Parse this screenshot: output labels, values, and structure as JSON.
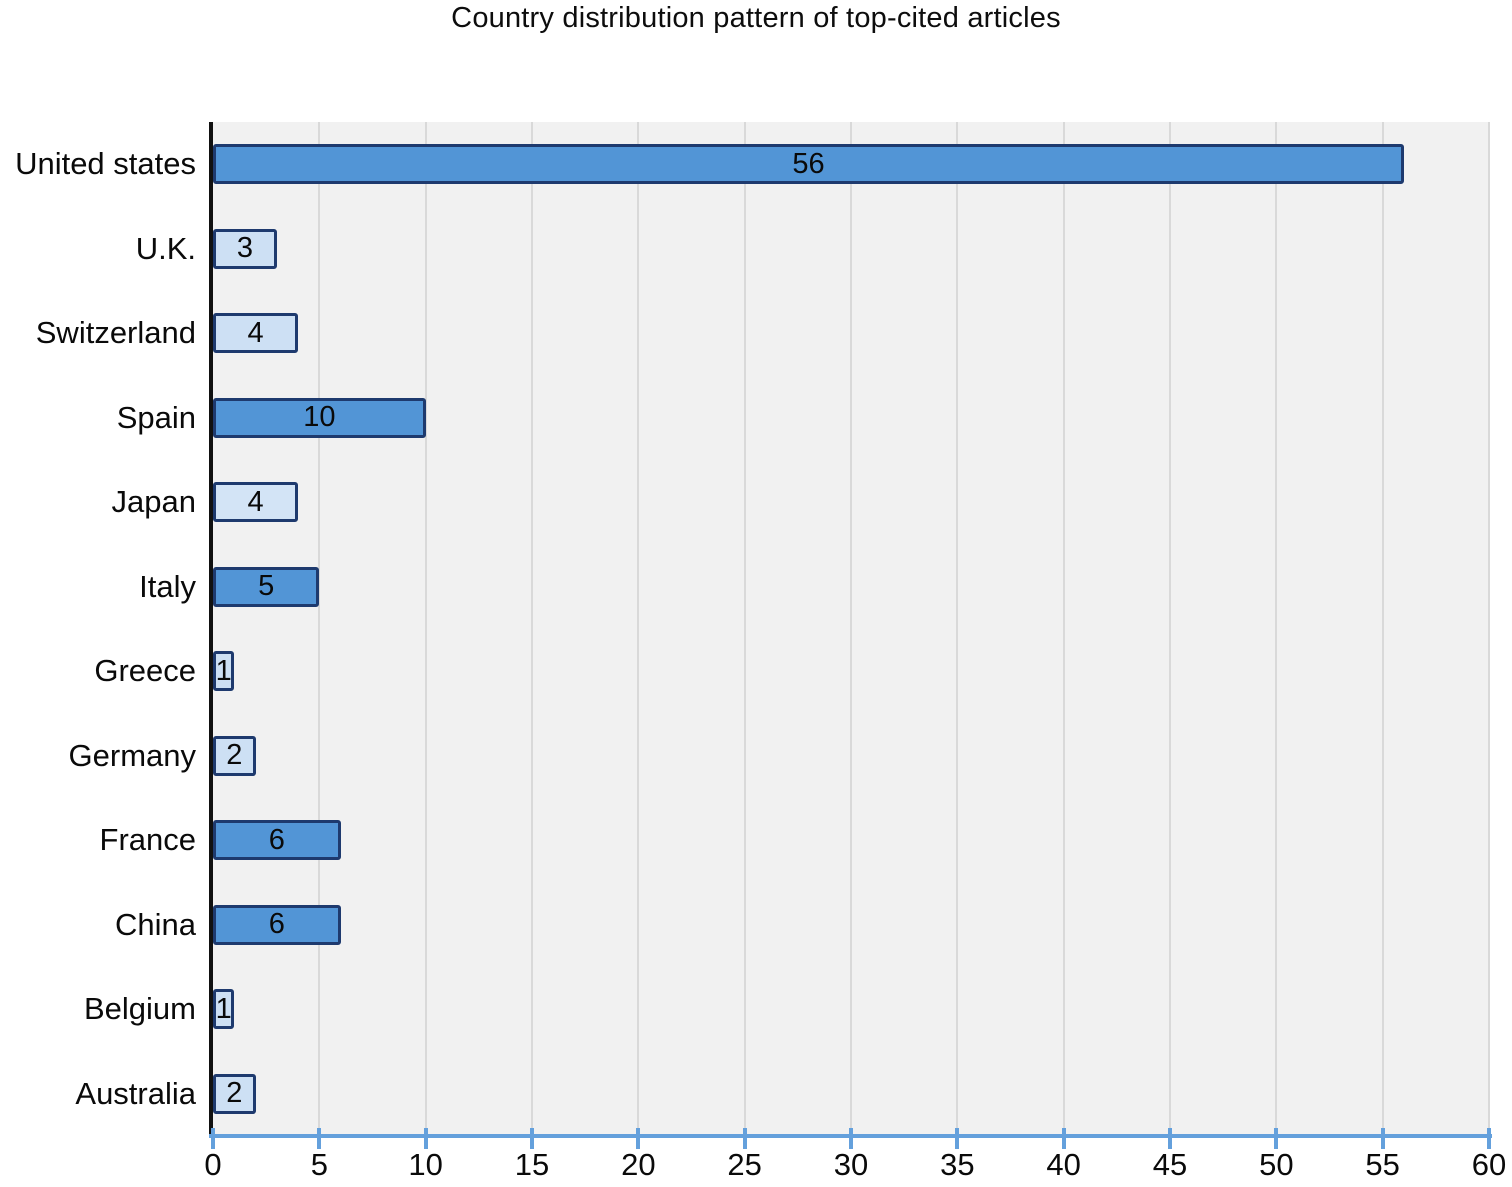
{
  "chart_data": {
    "type": "bar",
    "orientation": "horizontal",
    "title": "Country distribution pattern of top-cited articles",
    "categories": [
      "United states",
      "U.K.",
      "Switzerland",
      "Spain",
      "Japan",
      "Italy",
      "Greece",
      "Germany",
      "France",
      "China",
      "Belgium",
      "Australia"
    ],
    "values": [
      56,
      3,
      4,
      10,
      4,
      5,
      1,
      2,
      6,
      6,
      1,
      2
    ],
    "bar_colors": [
      "#5295d6",
      "#cde0f4",
      "#cde0f4",
      "#5295d6",
      "#d3e4f6",
      "#5295d6",
      "#cde0f4",
      "#cde0f4",
      "#5295d6",
      "#5295d6",
      "#cde0f4",
      "#cde0f4"
    ],
    "value_labels": [
      "56",
      "3",
      "4",
      "10",
      "4",
      "5",
      "1",
      "2",
      "6",
      "6",
      "1",
      "2"
    ],
    "xlabel": "",
    "ylabel": "",
    "xlim": [
      0,
      60
    ],
    "xticks": [
      0,
      5,
      10,
      15,
      20,
      25,
      30,
      35,
      40,
      45,
      50,
      55,
      60
    ],
    "grid": true,
    "legend": "none",
    "colors": {
      "bar_fill_medium": "#5295d6",
      "bar_fill_light": "#cde0f4",
      "bar_border": "#1e3a6e",
      "x_axis": "#64a0dc",
      "y_axis": "#111111",
      "plot_background": "#f1f1f1",
      "gridline": "#d9d9d9",
      "text": "#0a0a0a"
    }
  }
}
